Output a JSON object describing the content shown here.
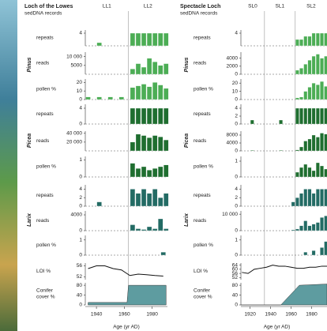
{
  "chart_data": [
    {
      "type": "bar",
      "title": "Loch of the Lowes",
      "subtitle": "sedDNA records",
      "xlabel": "Age (yr AD)",
      "xlim": [
        1932,
        1991
      ],
      "xticks": [
        1940,
        1960,
        1980
      ],
      "zones": [
        "LL1",
        "LL2"
      ],
      "zone_bounds": [
        1963
      ],
      "groups": [
        {
          "name": "Pinus",
          "color": "#4cad55",
          "rows": [
            {
              "type": "bar",
              "label": "repeats",
              "ylim": [
                0,
                5
              ],
              "yticks": [
                4
              ],
              "x": [
                1942,
                1966,
                1970,
                1974,
                1978,
                1982,
                1986,
                1990
              ],
              "values": [
                1,
                4,
                4,
                4,
                4,
                4,
                4,
                4
              ]
            },
            {
              "type": "bar",
              "label": "reads",
              "ylim": [
                0,
                12500
              ],
              "yticks": [
                {
                  "value": 10000,
                  "label": "10 000"
                },
                5000
              ],
              "x": [
                1966,
                1970,
                1974,
                1978,
                1982,
                1986,
                1990
              ],
              "values": [
                3000,
                6000,
                4000,
                9000,
                7000,
                5000,
                6000
              ]
            },
            {
              "type": "bar",
              "label": "pollen %",
              "ylim": [
                0,
                24
              ],
              "yticks": [
                0,
                10,
                20
              ],
              "x": [
                1934,
                1942,
                1950,
                1958,
                1966,
                1970,
                1974,
                1978,
                1982,
                1986,
                1990
              ],
              "values": [
                3,
                3,
                3,
                3,
                14,
                16,
                18,
                15,
                20,
                17,
                13
              ]
            }
          ]
        },
        {
          "name": "Picea",
          "color": "#1f6e30",
          "rows": [
            {
              "type": "bar",
              "label": "repeats",
              "ylim": [
                0,
                5
              ],
              "yticks": [
                0,
                4
              ],
              "x": [
                1966,
                1970,
                1974,
                1978,
                1982,
                1986,
                1990
              ],
              "values": [
                4,
                4,
                4,
                4,
                4,
                4,
                4
              ]
            },
            {
              "type": "bar",
              "label": "reads",
              "ylim": [
                0,
                45000
              ],
              "yticks": [
                {
                  "value": 40000,
                  "label": "40 000"
                },
                {
                  "value": 20000,
                  "label": "20 000"
                }
              ],
              "x": [
                1966,
                1970,
                1974,
                1978,
                1982,
                1986,
                1990
              ],
              "values": [
                20000,
                38000,
                35000,
                30000,
                35000,
                32000,
                25000
              ]
            },
            {
              "type": "bar",
              "label": "pollen %",
              "ylim": [
                0,
                1.2
              ],
              "yticks": [
                0,
                1
              ],
              "x": [
                1966,
                1970,
                1974,
                1978,
                1982,
                1986,
                1990
              ],
              "values": [
                0.8,
                0.5,
                0.6,
                0.4,
                0.5,
                0.6,
                0.7
              ]
            }
          ]
        },
        {
          "name": "Larix",
          "color": "#236b64",
          "rows": [
            {
              "type": "bar",
              "label": "repeats",
              "ylim": [
                0,
                5
              ],
              "yticks": [
                0,
                2,
                4
              ],
              "x": [
                1942,
                1966,
                1970,
                1974,
                1978,
                1982,
                1986,
                1990
              ],
              "values": [
                1,
                4,
                3,
                4,
                3,
                4,
                2,
                3
              ]
            },
            {
              "type": "bar",
              "label": "reads",
              "ylim": [
                0,
                5000
              ],
              "yticks": [
                0,
                4000
              ],
              "x": [
                1966,
                1970,
                1974,
                1978,
                1982,
                1986,
                1990
              ],
              "values": [
                1500,
                500,
                300,
                1000,
                500,
                3000,
                500
              ]
            },
            {
              "type": "bar",
              "label": "pollen %",
              "ylim": [
                0,
                1.3
              ],
              "yticks": [
                0,
                1
              ],
              "x": [
                1988
              ],
              "values": [
                0.2
              ]
            }
          ]
        }
      ],
      "extras": [
        {
          "type": "line",
          "label": [
            "LOI %"
          ],
          "color": "#111111",
          "ylim": [
            51,
            57
          ],
          "yticks": [
            52,
            56
          ],
          "x": [
            1934,
            1940,
            1946,
            1952,
            1958,
            1964,
            1970,
            1976,
            1982,
            1988
          ],
          "values": [
            55,
            56,
            56,
            55,
            54.5,
            52.5,
            53,
            52.8,
            52.5,
            52.3
          ]
        },
        {
          "type": "area",
          "label": [
            "Conifer",
            "cover %"
          ],
          "color": "#5e9ca0",
          "ylim": [
            0,
            90
          ],
          "yticks": [
            0,
            40,
            80
          ],
          "x": [
            1934,
            1962,
            1963,
            1990
          ],
          "values": [
            10,
            10,
            80,
            80
          ]
        }
      ]
    },
    {
      "type": "bar",
      "title": "Spectacle Loch",
      "subtitle": "sedDNA records",
      "xlabel": "Age (yr AD)",
      "xlim": [
        1911,
        1995
      ],
      "xticks": [
        1920,
        1940,
        1960,
        1980
      ],
      "zones": [
        "SL0",
        "SL1",
        "SL2"
      ],
      "zone_bounds": [
        1934,
        1964
      ],
      "groups": [
        {
          "name": "Pinus",
          "color": "#4cad55",
          "rows": [
            {
              "type": "bar",
              "label": "repeats",
              "ylim": [
                0,
                5
              ],
              "yticks": [
                4
              ],
              "x": [
                1966,
                1970,
                1974,
                1978,
                1982,
                1986,
                1990,
                1994
              ],
              "values": [
                2,
                2,
                3,
                3,
                4,
                4,
                4,
                4
              ]
            },
            {
              "type": "bar",
              "label": "reads",
              "ylim": [
                0,
                5500
              ],
              "yticks": [
                0,
                2000,
                4000
              ],
              "x": [
                1966,
                1970,
                1974,
                1978,
                1982,
                1986,
                1990,
                1994
              ],
              "values": [
                1000,
                1500,
                2500,
                3500,
                4500,
                5000,
                4000,
                4500
              ]
            },
            {
              "type": "bar",
              "label": "pollen %",
              "ylim": [
                0,
                25
              ],
              "yticks": [
                0,
                10,
                20
              ],
              "x": [
                1966,
                1970,
                1974,
                1978,
                1982,
                1986,
                1990,
                1994
              ],
              "values": [
                2,
                3,
                10,
                15,
                20,
                18,
                22,
                16
              ]
            }
          ]
        },
        {
          "name": "Picea",
          "color": "#1f6e30",
          "rows": [
            {
              "type": "bar",
              "label": "repeats",
              "ylim": [
                0,
                5
              ],
              "yticks": [
                0,
                2,
                4
              ],
              "x": [
                1922,
                1950,
                1966,
                1970,
                1974,
                1978,
                1982,
                1986,
                1990,
                1994
              ],
              "values": [
                1,
                1,
                4,
                4,
                4,
                4,
                4,
                4,
                4,
                4
              ]
            },
            {
              "type": "bar",
              "label": "reads",
              "ylim": [
                0,
                10000
              ],
              "yticks": [
                0,
                4000,
                8000
              ],
              "x": [
                1922,
                1950,
                1966,
                1970,
                1974,
                1978,
                1982,
                1986,
                1990,
                1994
              ],
              "values": [
                300,
                300,
                500,
                2000,
                5000,
                6000,
                8000,
                7000,
                9000,
                8500
              ]
            },
            {
              "type": "bar",
              "label": "pollen %",
              "ylim": [
                0,
                1.3
              ],
              "yticks": [
                0,
                1
              ],
              "x": [
                1966,
                1970,
                1974,
                1978,
                1982,
                1986,
                1990,
                1994
              ],
              "values": [
                0.3,
                0.6,
                0.8,
                0.6,
                0.4,
                0.9,
                0.7,
                0.5
              ]
            }
          ]
        },
        {
          "name": "Larix",
          "color": "#236b64",
          "rows": [
            {
              "type": "bar",
              "label": "repeats",
              "ylim": [
                0,
                5
              ],
              "yticks": [
                0,
                2,
                4
              ],
              "x": [
                1962,
                1966,
                1970,
                1974,
                1978,
                1982,
                1986,
                1990,
                1994
              ],
              "values": [
                1,
                2,
                3,
                4,
                4,
                3,
                4,
                4,
                4
              ]
            },
            {
              "type": "bar",
              "label": "reads",
              "ylim": [
                0,
                12000
              ],
              "yticks": [
                0,
                {
                  "value": 10000,
                  "label": "10 000"
                }
              ],
              "x": [
                1962,
                1966,
                1970,
                1974,
                1978,
                1982,
                1986,
                1990,
                1994
              ],
              "values": [
                500,
                1000,
                3000,
                6000,
                3000,
                4000,
                5000,
                8000,
                9000
              ]
            },
            {
              "type": "bar",
              "label": "pollen %",
              "ylim": [
                0,
                1.3
              ],
              "yticks": [
                0,
                1
              ],
              "x": [
                1974,
                1982,
                1990,
                1994
              ],
              "values": [
                0.2,
                0.3,
                0.5,
                0.9
              ]
            }
          ]
        }
      ],
      "extras": [
        {
          "type": "line",
          "label": [
            "LOI %"
          ],
          "color": "#111111",
          "ylim": [
            50,
            66
          ],
          "yticks": [
            52,
            56,
            60,
            64
          ],
          "x": [
            1912,
            1918,
            1924,
            1930,
            1936,
            1942,
            1948,
            1954,
            1960,
            1966,
            1972,
            1978,
            1984,
            1990,
            1995
          ],
          "values": [
            57,
            56,
            60,
            61,
            62,
            64,
            63,
            63,
            62,
            61,
            61,
            62,
            62,
            63,
            63
          ]
        },
        {
          "type": "area",
          "label": [
            "Conifer",
            "cover %"
          ],
          "color": "#5e9ca0",
          "ylim": [
            0,
            90
          ],
          "yticks": [
            0,
            40,
            80
          ],
          "x": [
            1911,
            1950,
            1968,
            1995
          ],
          "values": [
            0,
            0,
            80,
            85
          ]
        }
      ]
    }
  ]
}
